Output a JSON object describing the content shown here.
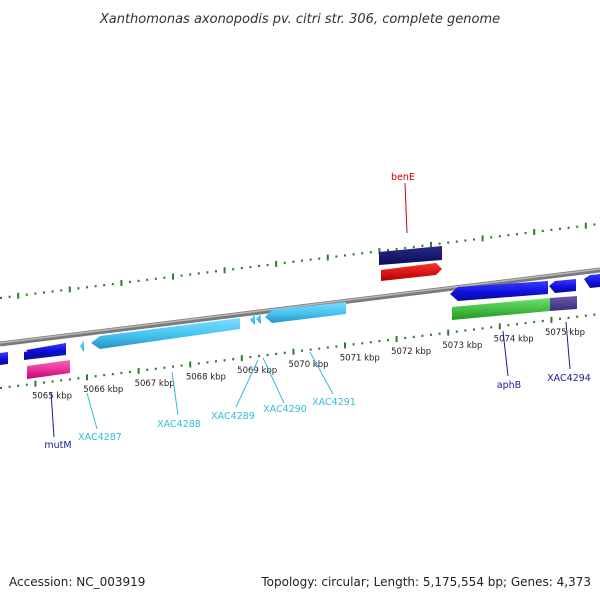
{
  "title": "Xanthomonas axonopodis pv. citri str. 306, complete genome",
  "accession": "Accession: NC_003919",
  "summary": "Topology: circular; Length: 5,175,554 bp; Genes: 4,373",
  "colors": {
    "backbone": "#8c8c8c",
    "tick": "#2e7d2e",
    "label_dark_blue": "#1a1a99",
    "label_cyan": "#33bbdd",
    "label_red": "#cc0000"
  },
  "scale_labels": [
    "5065 kbp",
    "5066 kbp",
    "5067 kbp",
    "5068 kbp",
    "5069 kbp",
    "5070 kbp",
    "5071 kbp",
    "5072 kbp",
    "5073 kbp",
    "5074 kbp",
    "5075 kbp"
  ],
  "gene_labels": {
    "benE": "benE",
    "mutM": "mutM",
    "XAC4287": "XAC4287",
    "XAC4288": "XAC4288",
    "XAC4289": "XAC4289",
    "XAC4290": "XAC4290",
    "XAC4291": "XAC4291",
    "aphB": "aphB",
    "XAC4294": "XAC4294"
  }
}
